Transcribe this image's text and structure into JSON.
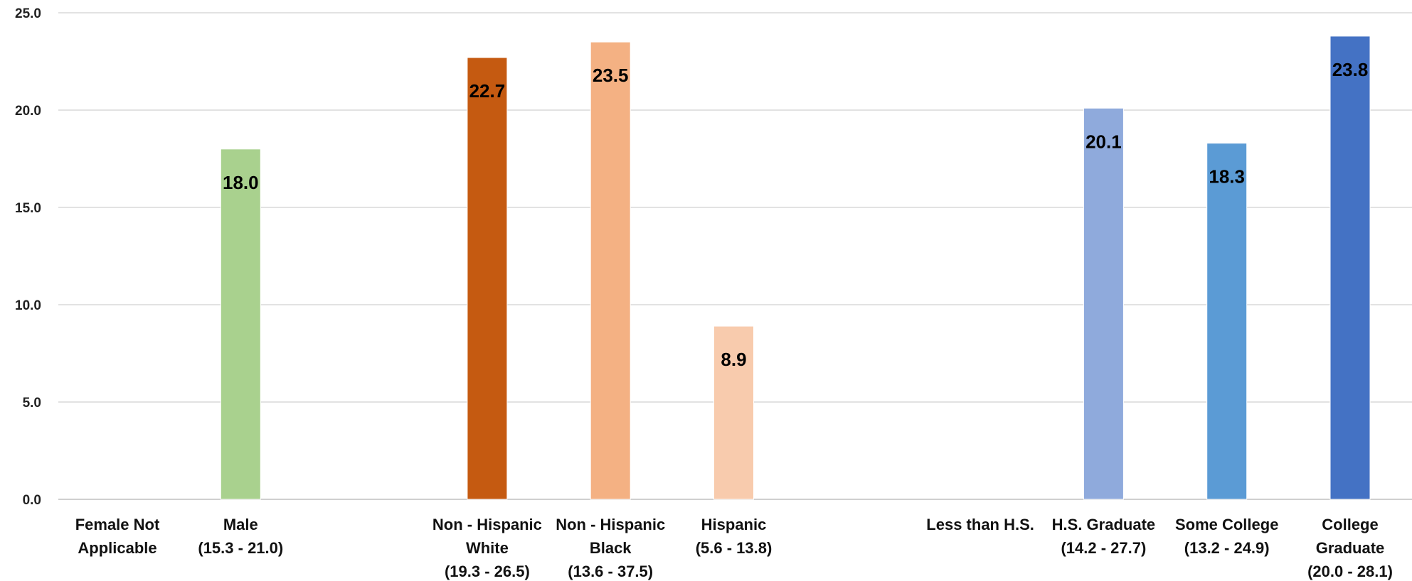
{
  "chart_data": {
    "type": "bar",
    "title": "",
    "xlabel": "",
    "ylabel": "",
    "ylim": [
      0,
      25
    ],
    "yticks": [
      "0.0",
      "5.0",
      "10.0",
      "15.0",
      "20.0",
      "25.0"
    ],
    "grid": true,
    "categories": [
      {
        "label_lines": [
          "Female  Not",
          "Applicable"
        ],
        "value": null,
        "value_label": "",
        "color": ""
      },
      {
        "label_lines": [
          "Male",
          "(15.3 - 21.0)"
        ],
        "value": 18.0,
        "value_label": "18.0",
        "color": "#a9d18e"
      },
      {
        "label_lines": [],
        "value": null,
        "value_label": "",
        "color": ""
      },
      {
        "label_lines": [
          "Non - Hispanic",
          "White",
          "(19.3 - 26.5)"
        ],
        "value": 22.7,
        "value_label": "22.7",
        "color": "#c55a11"
      },
      {
        "label_lines": [
          "Non - Hispanic",
          "Black",
          "(13.6 - 37.5)"
        ],
        "value": 23.5,
        "value_label": "23.5",
        "color": "#f4b183"
      },
      {
        "label_lines": [
          "Hispanic",
          "(5.6 - 13.8)"
        ],
        "value": 8.9,
        "value_label": "8.9",
        "color": "#f8cbad"
      },
      {
        "label_lines": [],
        "value": null,
        "value_label": "",
        "color": ""
      },
      {
        "label_lines": [
          "Less than H.S."
        ],
        "value": null,
        "value_label": "",
        "color": ""
      },
      {
        "label_lines": [
          "H.S. Graduate",
          "(14.2 - 27.7)"
        ],
        "value": 20.1,
        "value_label": "20.1",
        "color": "#8faadc"
      },
      {
        "label_lines": [
          "Some College",
          "(13.2 - 24.9)"
        ],
        "value": 18.3,
        "value_label": "18.3",
        "color": "#5b9bd5"
      },
      {
        "label_lines": [
          "College",
          "Graduate",
          "(20.0 - 28.1)"
        ],
        "value": 23.8,
        "value_label": "23.8",
        "color": "#4472c4"
      }
    ]
  }
}
